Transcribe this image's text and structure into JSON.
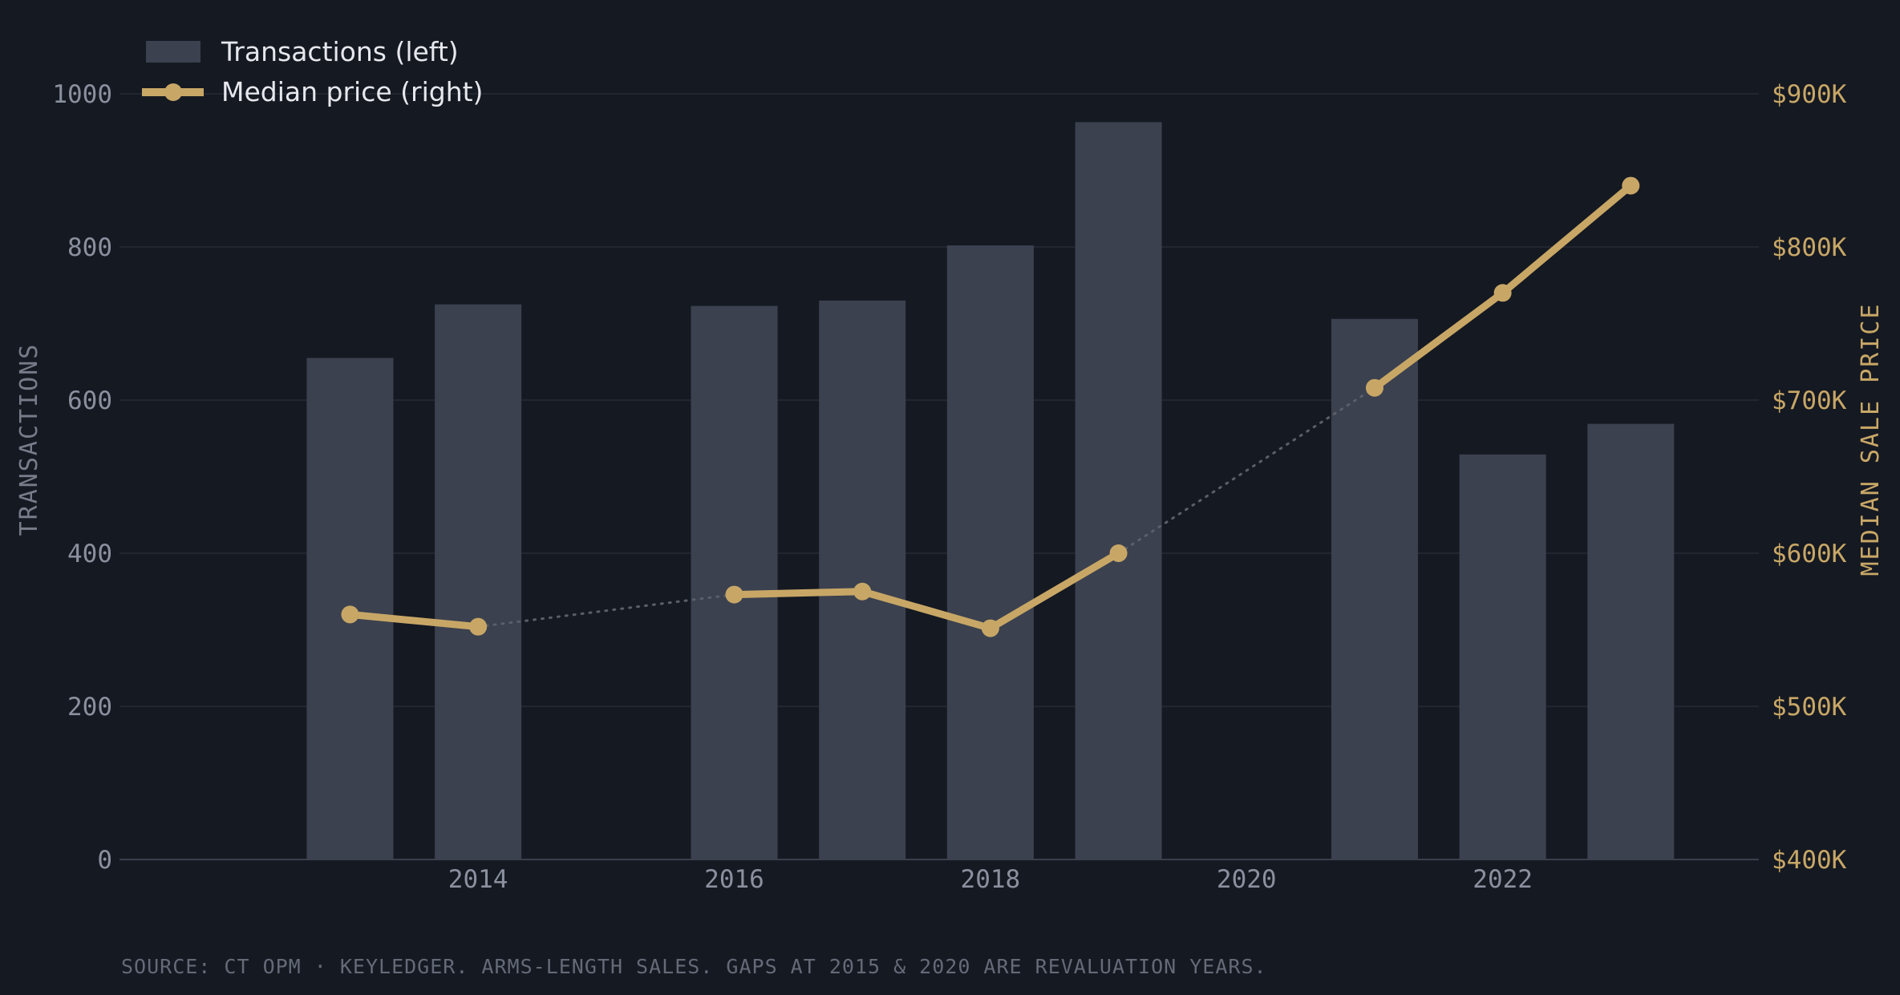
{
  "chart_data": {
    "type": "bar",
    "x": [
      2013,
      2014,
      2015,
      2016,
      2017,
      2018,
      2019,
      2020,
      2021,
      2022,
      2023
    ],
    "x_tick_labels": [
      "2014",
      "2016",
      "2018",
      "2020",
      "2022"
    ],
    "x_tick_values": [
      2014,
      2016,
      2018,
      2020,
      2022
    ],
    "xlim": [
      2011.2,
      2024.0
    ],
    "series": [
      {
        "name": "Transactions (left)",
        "kind": "bar",
        "axis": "left",
        "values": [
          655,
          725,
          null,
          723,
          730,
          802,
          963,
          null,
          706,
          529,
          569
        ],
        "color": "#3b414f"
      },
      {
        "name": "Median price (right)",
        "kind": "line",
        "axis": "right",
        "values": [
          560000,
          552000,
          null,
          573000,
          575000,
          551000,
          600000,
          null,
          708000,
          770000,
          840000
        ],
        "color": "#c8a766",
        "gap_connector_color": "#5b5f69"
      }
    ],
    "left_axis": {
      "label": "TRANSACTIONS",
      "ylim": [
        0,
        1000
      ],
      "ticks": [
        0,
        200,
        400,
        600,
        800,
        1000
      ],
      "tick_labels": [
        "0",
        "200",
        "400",
        "600",
        "800",
        "1000"
      ]
    },
    "right_axis": {
      "label": "MEDIAN SALE PRICE",
      "ylim": [
        400000,
        900000
      ],
      "ticks": [
        400000,
        500000,
        600000,
        700000,
        800000,
        900000
      ],
      "tick_labels": [
        "$400K",
        "$500K",
        "$600K",
        "$700K",
        "$800K",
        "$900K"
      ]
    },
    "grid": true,
    "legend": "top-left",
    "source_note": "SOURCE: CT OPM · KEYLEDGER. ARMS-LENGTH SALES. GAPS AT 2015 & 2020 ARE REVALUATION YEARS.",
    "colors": {
      "background": "#151922",
      "grid": "#262b35",
      "baseline": "#3a3f4b"
    }
  }
}
